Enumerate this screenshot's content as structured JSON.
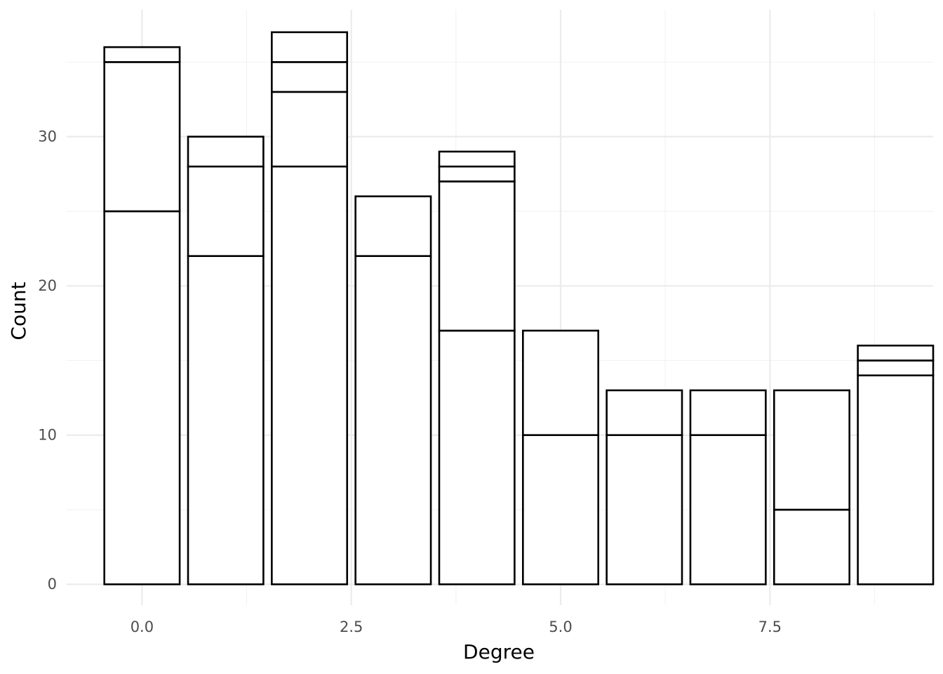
{
  "chart_data": {
    "type": "bar",
    "stacked": true,
    "title": "",
    "xlabel": "Degree",
    "ylabel": "Count",
    "x": [
      0,
      1,
      2,
      3,
      4,
      5,
      6,
      7,
      8,
      9
    ],
    "segment_boundaries": [
      [
        25,
        35,
        36
      ],
      [
        22,
        28,
        30
      ],
      [
        28,
        33,
        35,
        37
      ],
      [
        22,
        26
      ],
      [
        17,
        27,
        28,
        29
      ],
      [
        10,
        17
      ],
      [
        10,
        13
      ],
      [
        10,
        13
      ],
      [
        5,
        13
      ],
      [
        14,
        15,
        16
      ]
    ],
    "totals": [
      36,
      30,
      37,
      26,
      29,
      17,
      13,
      13,
      13,
      16
    ],
    "xlim": [
      -0.9,
      9.45
    ],
    "ylim": [
      -1.4,
      38.5
    ],
    "x_ticks": [
      0.0,
      2.5,
      5.0,
      7.5
    ],
    "x_tick_labels": [
      "0.0",
      "2.5",
      "5.0",
      "7.5"
    ],
    "x_minor_ticks": [
      1.25,
      3.75,
      6.25,
      8.75
    ],
    "y_ticks": [
      0,
      10,
      20,
      30
    ],
    "y_tick_labels": [
      "0",
      "10",
      "20",
      "30"
    ],
    "y_minor_ticks": [
      5,
      15,
      25,
      35
    ],
    "bar_width": 0.9,
    "grid": true,
    "legend": "none",
    "colors": {
      "bar_fill": "#ffffff",
      "bar_outline": "#000000",
      "grid": "#ebebeb",
      "tick_text": "#4d4d4d"
    }
  }
}
